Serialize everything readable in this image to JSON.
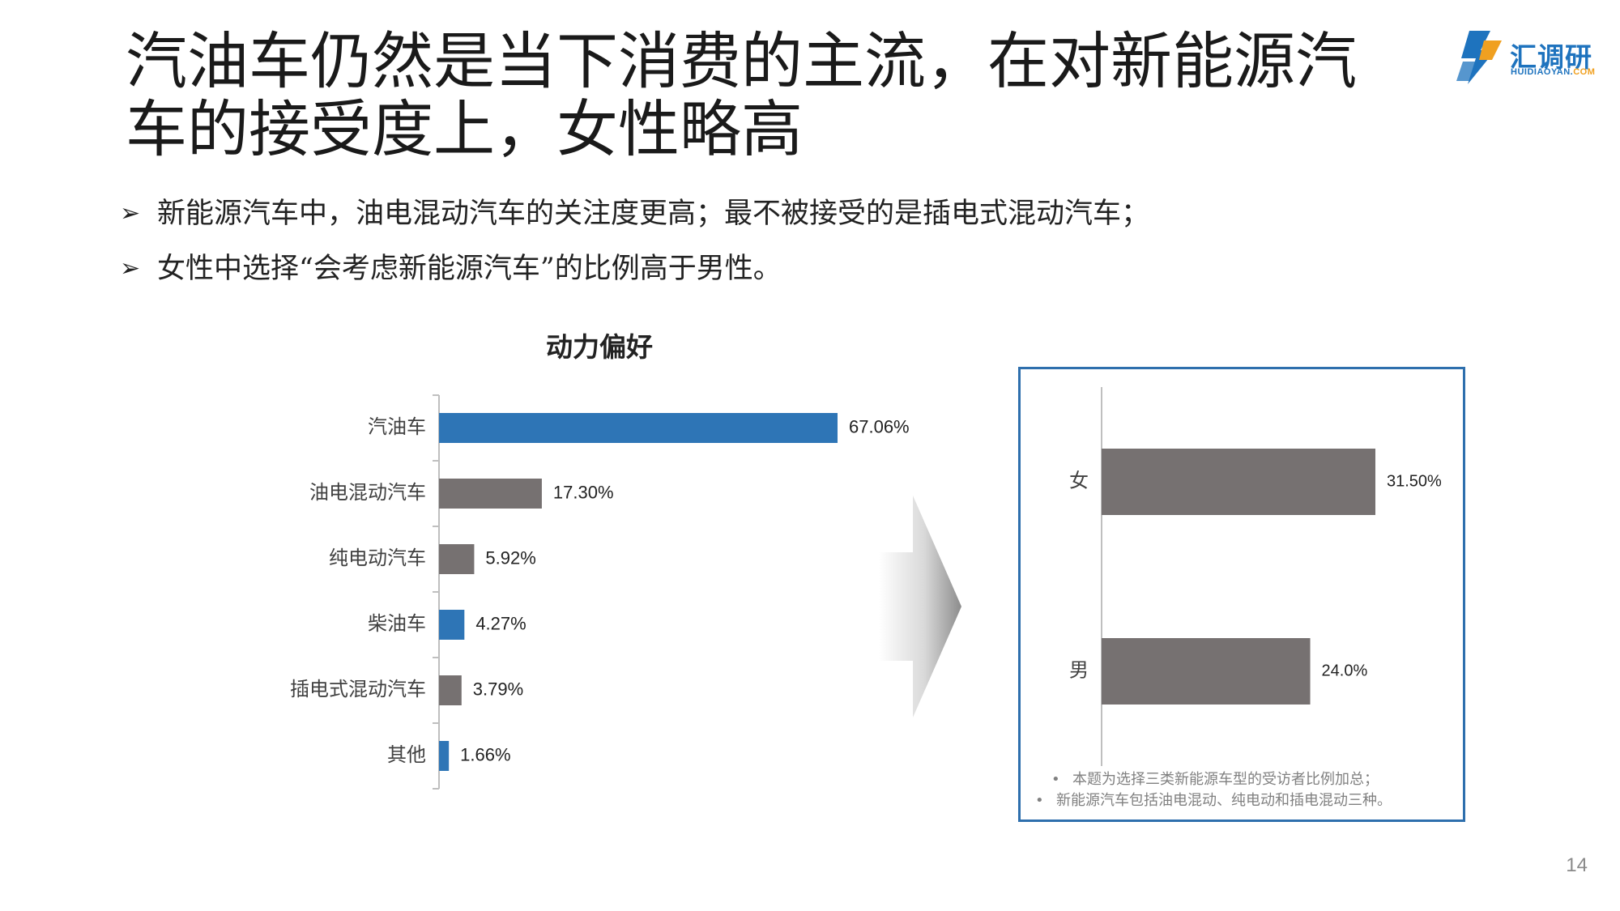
{
  "slide": {
    "title": "汽油车仍然是当下消费的主流，在对新能源汽车的接受度上，女性略高",
    "bullets": [
      "新能源汽车中，油电混动汽车的关注度更高；最不被接受的是插电式混动汽车；",
      "女性中选择“会考虑新能源汽车”的比例高于男性。"
    ],
    "bullet_marker": "➢",
    "page_number": "14"
  },
  "logo": {
    "text": "汇调研",
    "sub_main": "HUIDIAOYAN.",
    "sub_accent": "COM"
  },
  "colors": {
    "blue": "#2e75b6",
    "gray": "#767171",
    "axis": "#bfbfbf",
    "frame": "#2e6fad"
  },
  "chart_data": [
    {
      "type": "bar",
      "orientation": "horizontal",
      "title": "动力偏好",
      "categories": [
        "汽油车",
        "油电混动汽车",
        "纯电动汽车",
        "柴油车",
        "插电式混动汽车",
        "其他"
      ],
      "values": [
        67.06,
        17.3,
        5.92,
        4.27,
        3.79,
        1.66
      ],
      "value_labels": [
        "67.06%",
        "17.30%",
        "5.92%",
        "4.27%",
        "3.79%",
        "1.66%"
      ],
      "bar_colors": [
        "#2e75b6",
        "#767171",
        "#767171",
        "#2e75b6",
        "#767171",
        "#2e75b6"
      ],
      "xlim": [
        0,
        67.06
      ],
      "grid": false
    },
    {
      "type": "bar",
      "orientation": "horizontal",
      "categories": [
        "女",
        "男"
      ],
      "values": [
        31.5,
        24.0
      ],
      "value_labels": [
        "31.50%",
        "24.0%"
      ],
      "bar_colors": [
        "#767171",
        "#767171"
      ],
      "xlim": [
        0,
        31.5
      ],
      "grid": false
    }
  ],
  "notes": [
    "本题为选择三类新能源车型的受访者比例加总；",
    "新能源汽车包括油电混动、纯电动和插电混动三种。"
  ],
  "note_marker": "•"
}
